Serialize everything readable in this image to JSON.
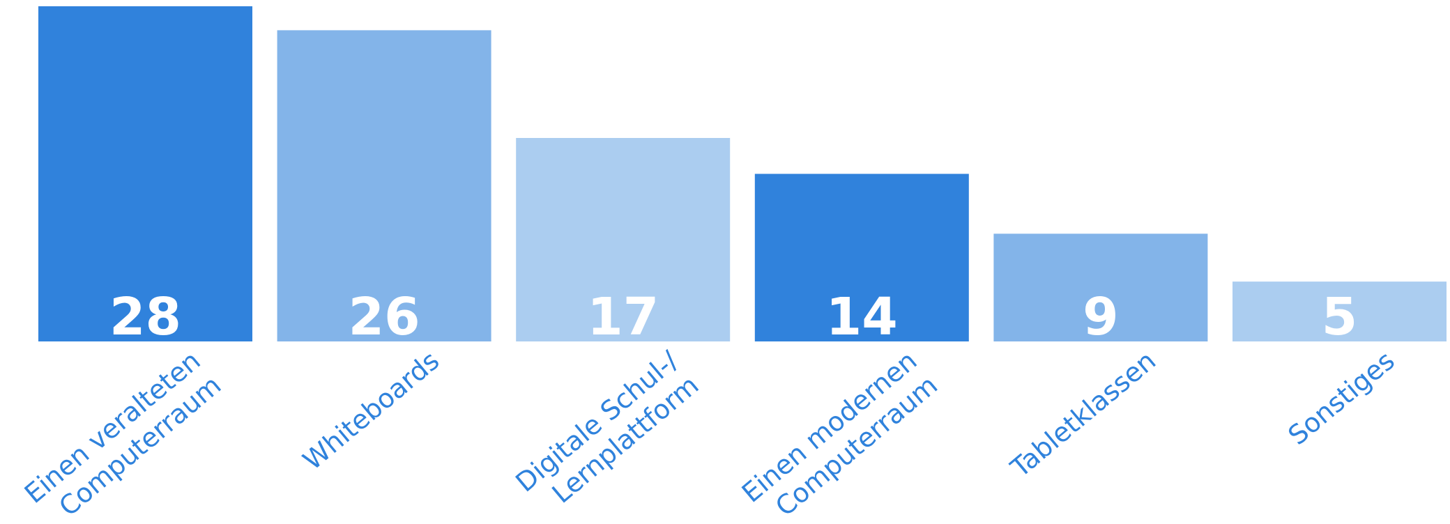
{
  "chart_data": {
    "type": "bar",
    "categories": [
      [
        "Einen veralteten",
        "Computerraum"
      ],
      [
        "Whiteboards"
      ],
      [
        "Digitale Schul-/",
        "Lernplattform"
      ],
      [
        "Einen modernen",
        "Computerraum"
      ],
      [
        "Tabletklassen"
      ],
      [
        "Sonstiges"
      ]
    ],
    "values": [
      28,
      26,
      17,
      14,
      9,
      5
    ],
    "value_labels": [
      "28",
      "26",
      "17",
      "14",
      "9",
      "5"
    ],
    "colors": [
      "#3082dc",
      "#83b4e9",
      "#abcdf0",
      "#3082dc",
      "#83b4e9",
      "#abcdf0"
    ],
    "label_color": "#2f82dc",
    "title": "",
    "xlabel": "",
    "ylabel": "",
    "ylim": [
      0,
      28
    ],
    "grid": false,
    "legend": "none"
  }
}
